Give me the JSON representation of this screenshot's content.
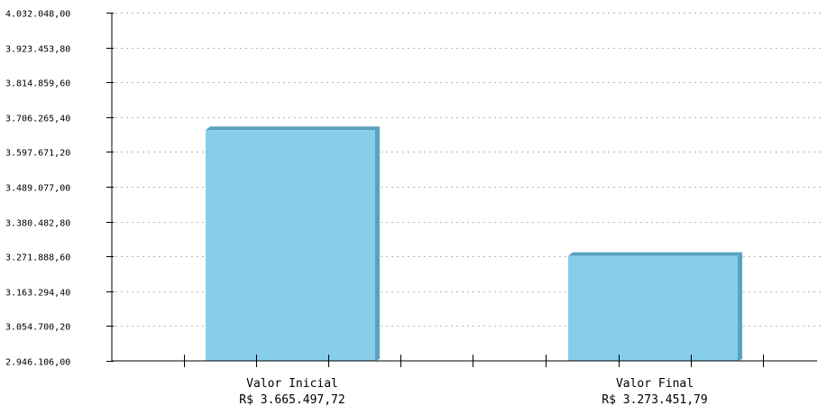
{
  "chart_data": {
    "type": "bar",
    "categories": [
      "Valor Inicial",
      "Valor Final"
    ],
    "category_sublabels": [
      "R$ 3.665.497,72",
      "R$ 3.273.451,79"
    ],
    "values": [
      3665497.72,
      3273451.79
    ],
    "yticks": [
      2946106.0,
      3054700.2,
      3163294.4,
      3271888.6,
      3380482.8,
      3489077.0,
      3597671.2,
      3706265.4,
      3814859.6,
      3923453.8,
      4032048.0
    ],
    "ytick_labels": [
      "2.946.106,00",
      "3.054.700,20",
      "3.163.294,40",
      "3.271.888,60",
      "3.380.482,80",
      "3.489.077,00",
      "3.597.671,20",
      "3.706.265,40",
      "3.814.859,60",
      "3.923.453,80",
      "4.032.048,00"
    ],
    "ylim": [
      2946106.0,
      4032048.0
    ],
    "grid": true,
    "bar_color": "#87ceeb",
    "bar_shadow_color": "#5aa2c0",
    "grid_color": "#b5b5b5"
  }
}
